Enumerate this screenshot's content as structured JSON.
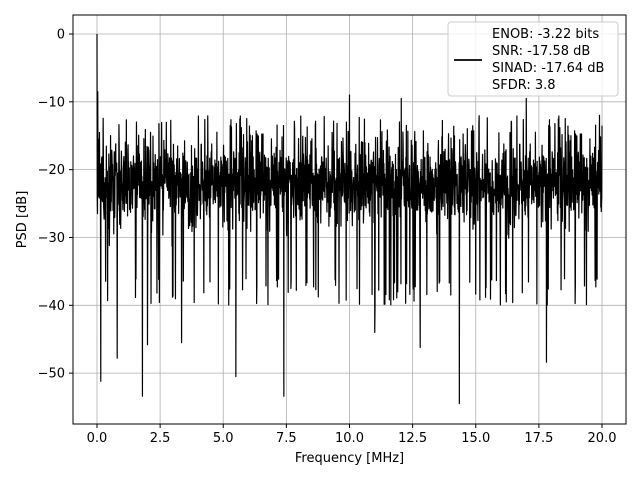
{
  "chart_data": {
    "type": "line",
    "title": "",
    "xlabel": "Frequency [MHz]",
    "ylabel": "PSD [dB]",
    "xlim": [
      -0.95,
      20.95
    ],
    "ylim": [
      -57.5,
      2.8
    ],
    "xticks": [
      0.0,
      2.5,
      5.0,
      7.5,
      10.0,
      12.5,
      15.0,
      17.5,
      20.0
    ],
    "xtick_labels": [
      "0.0",
      "2.5",
      "5.0",
      "7.5",
      "10.0",
      "12.5",
      "15.0",
      "17.5",
      "20.0"
    ],
    "yticks": [
      0,
      -10,
      -20,
      -30,
      -40,
      -50
    ],
    "ytick_labels": [
      "0",
      "−10",
      "−20",
      "−30",
      "−40",
      "−50"
    ],
    "grid": true,
    "legend_position": "top-right",
    "series": [
      {
        "name": "ENOB: -3.22 bits\nSNR: -17.58 dB\nSINAD: -17.64 dB\nSFDR: 3.8",
        "color": "#000000",
        "x_range": [
          0.0,
          20.0
        ],
        "noise_floor_mean_db": -22,
        "noise_envelope_db": [
          -40,
          -12
        ],
        "peak": {
          "x": 0.0,
          "y": 0.0
        },
        "notable_points": [
          {
            "x": 0.0,
            "y": 0.0
          },
          {
            "x": 0.03,
            "y": -8.5
          },
          {
            "x": 0.08,
            "y": -15.5
          },
          {
            "x": 0.15,
            "y": -51.2
          },
          {
            "x": 0.8,
            "y": -47.8
          },
          {
            "x": 1.8,
            "y": -53.4
          },
          {
            "x": 2.0,
            "y": -45.8
          },
          {
            "x": 3.35,
            "y": -45.5
          },
          {
            "x": 5.5,
            "y": -50.5
          },
          {
            "x": 7.4,
            "y": -53.4
          },
          {
            "x": 10.0,
            "y": -9.0
          },
          {
            "x": 11.0,
            "y": -44.0
          },
          {
            "x": 12.05,
            "y": -9.5
          },
          {
            "x": 12.8,
            "y": -46.2
          },
          {
            "x": 14.35,
            "y": -54.5
          },
          {
            "x": 17.0,
            "y": -9.5
          },
          {
            "x": 17.8,
            "y": -48.4
          },
          {
            "x": 19.9,
            "y": -12.0
          }
        ]
      }
    ]
  }
}
